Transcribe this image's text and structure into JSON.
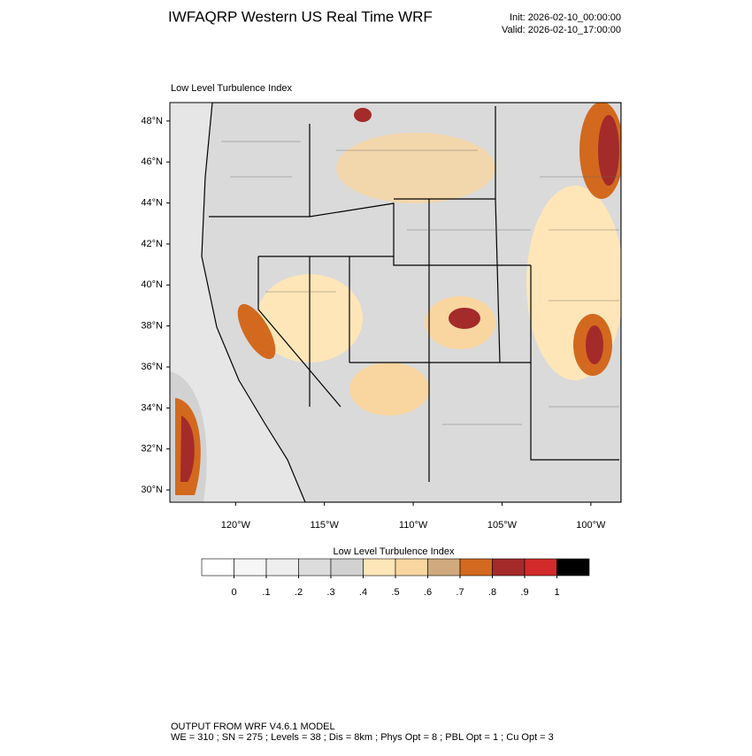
{
  "header": {
    "title": "IWFAQRP Western US Real Time WRF",
    "init": "Init: 2026-02-10_00:00:00",
    "valid": "Valid: 2026-02-10_17:00:00"
  },
  "map": {
    "subtitle": "Low Level Turbulence Index",
    "lonlim": [
      -123.7,
      -98.3
    ],
    "latlim": [
      29.4,
      48.9
    ],
    "latticks": [
      {
        "value": 30,
        "label": "30°N"
      },
      {
        "value": 32,
        "label": "32°N"
      },
      {
        "value": 34,
        "label": "34°N"
      },
      {
        "value": 36,
        "label": "36°N"
      },
      {
        "value": 38,
        "label": "38°N"
      },
      {
        "value": 40,
        "label": "40°N"
      },
      {
        "value": 42,
        "label": "42°N"
      },
      {
        "value": 44,
        "label": "44°N"
      },
      {
        "value": 46,
        "label": "46°N"
      },
      {
        "value": 48,
        "label": "48°N"
      }
    ],
    "lonticks": [
      {
        "value": -120,
        "label": "120°W"
      },
      {
        "value": -115,
        "label": "115°W"
      },
      {
        "value": -110,
        "label": "110°W"
      },
      {
        "value": -105,
        "label": "105°W"
      },
      {
        "value": -100,
        "label": "100°W"
      }
    ]
  },
  "colorbar": {
    "title": "Low Level Turbulence Index",
    "colors": [
      "#ffffff",
      "#f6f6f6",
      "#eeeeee",
      "#dcdcdc",
      "#d2d2d2",
      "#ffe6b8",
      "#f9d6a0",
      "#d0a97e",
      "#d2691e",
      "#a52a2a",
      "#d22a2a",
      "#000000"
    ],
    "ticks": [
      {
        "value": 0,
        "label": "0"
      },
      {
        "value": 0.1,
        "label": ".1"
      },
      {
        "value": 0.2,
        "label": ".2"
      },
      {
        "value": 0.3,
        "label": ".3"
      },
      {
        "value": 0.4,
        "label": ".4"
      },
      {
        "value": 0.5,
        "label": ".5"
      },
      {
        "value": 0.6,
        "label": ".6"
      },
      {
        "value": 0.7,
        "label": ".7"
      },
      {
        "value": 0.8,
        "label": ".8"
      },
      {
        "value": 0.9,
        "label": ".9"
      },
      {
        "value": 1,
        "label": "1"
      }
    ]
  },
  "footer": {
    "line1": "OUTPUT FROM WRF V4.6.1 MODEL",
    "line2": "WE = 310 ; SN = 275 ; Levels = 38 ; Dis = 8km ; Phys Opt = 8 ; PBL Opt = 1 ; Cu Opt = 3"
  }
}
